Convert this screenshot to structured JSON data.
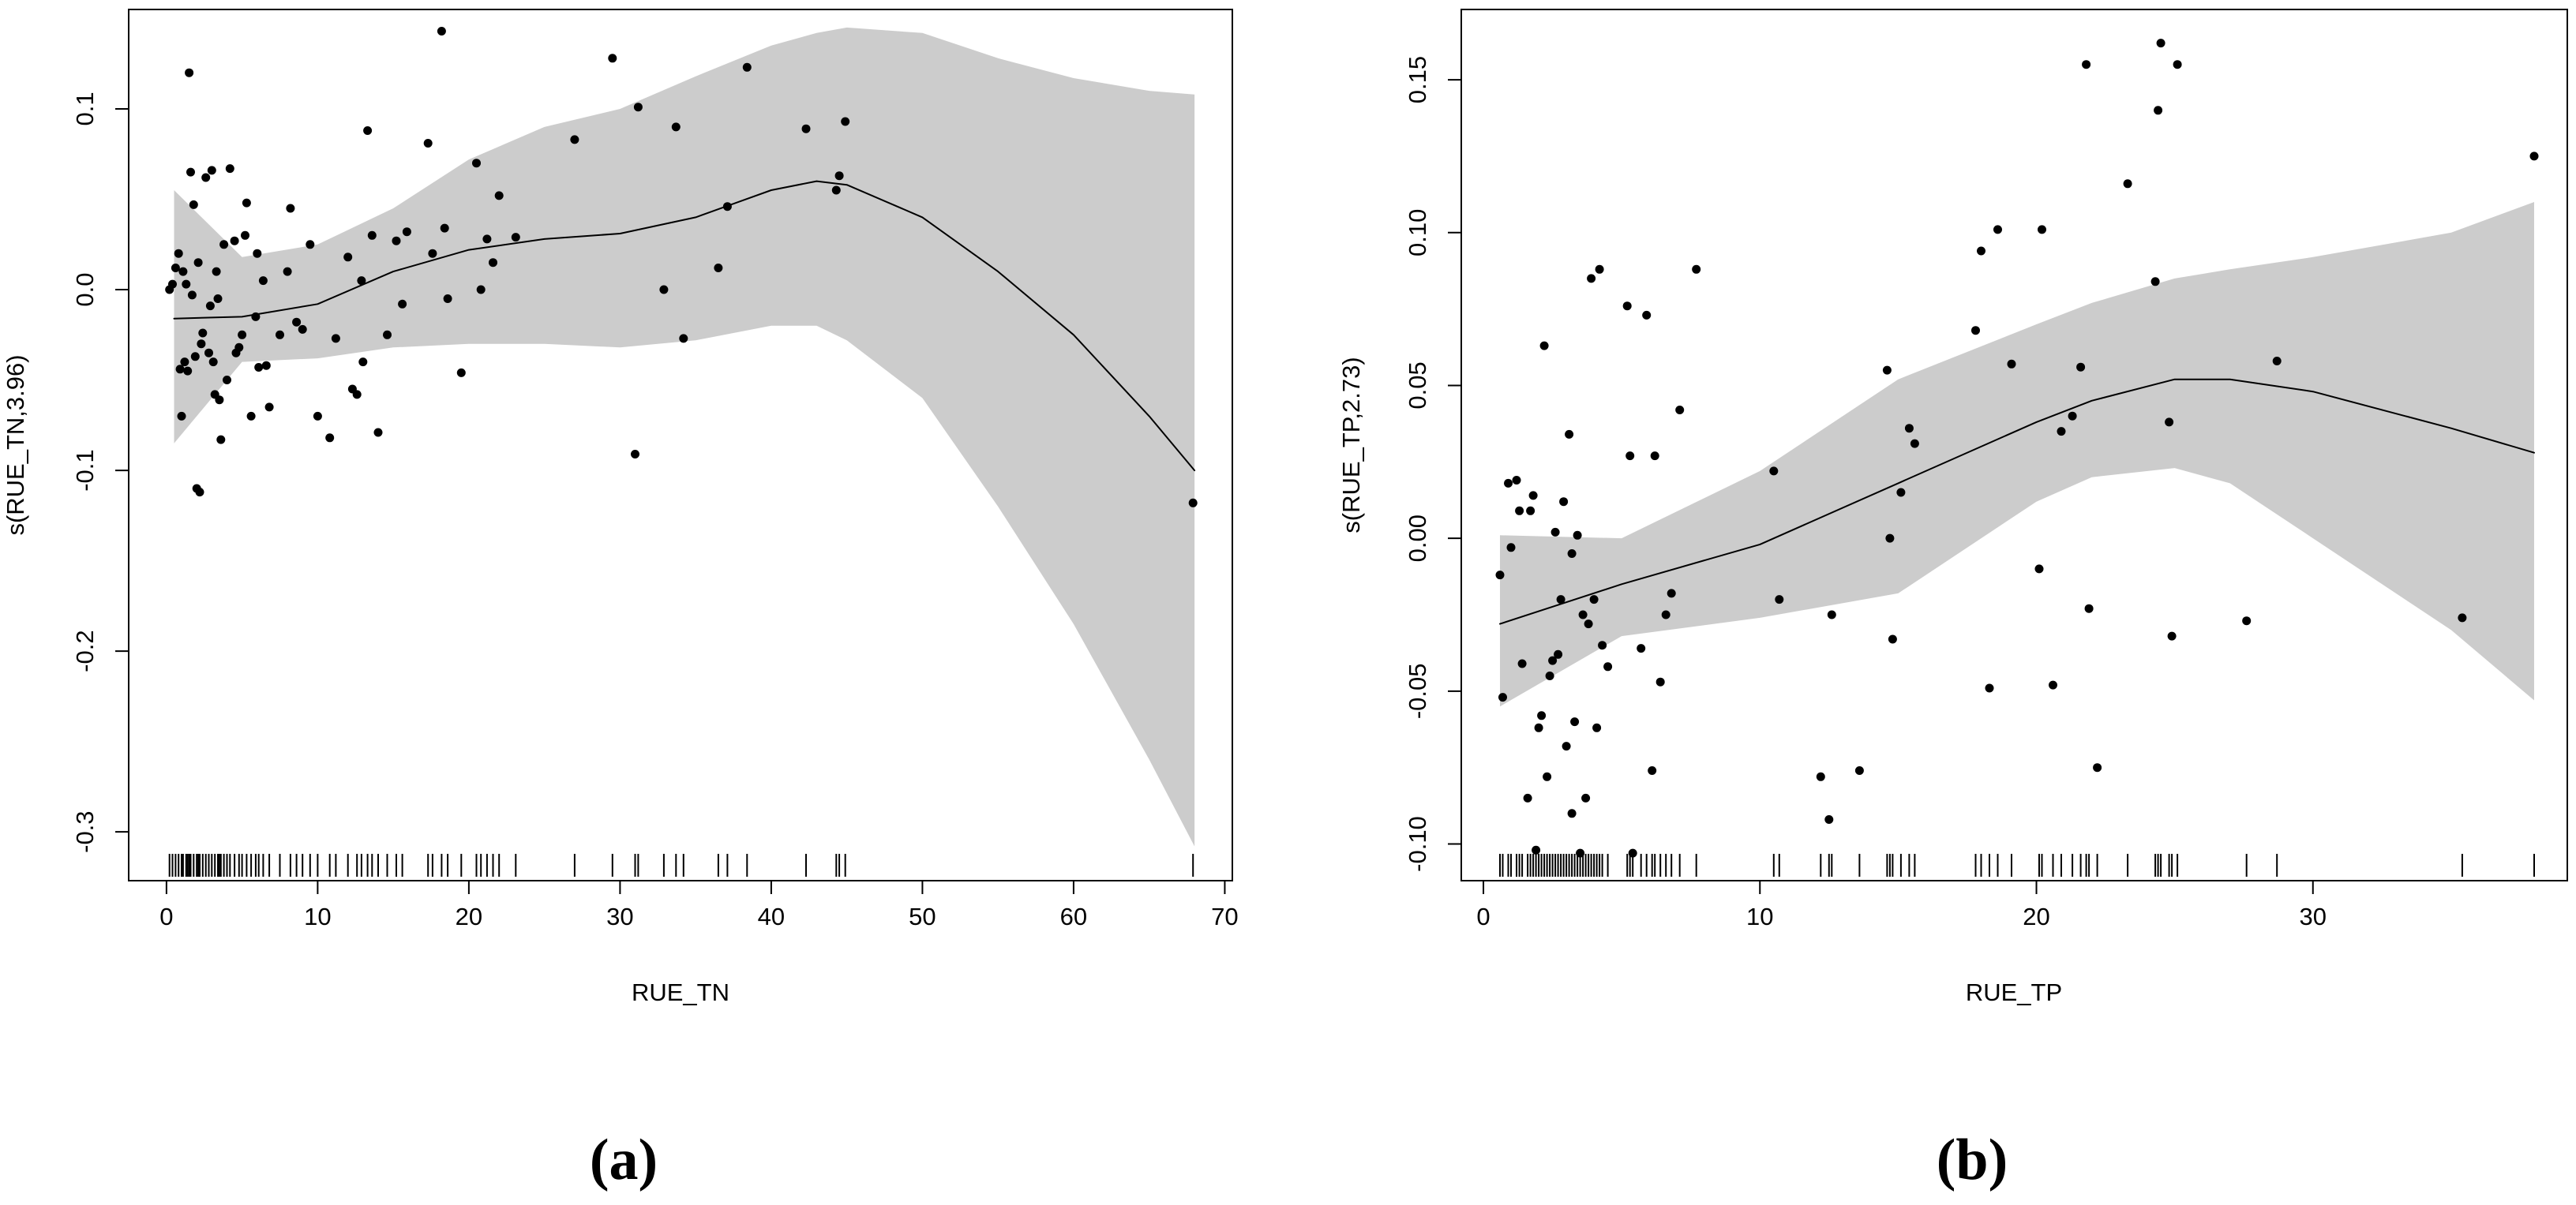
{
  "colors": {
    "band": "#cccccc",
    "line": "#000000",
    "points": "#000000",
    "axis": "#000000",
    "background": "#ffffff"
  },
  "chart_data": [
    {
      "type": "scatter",
      "panel_label": "(a)",
      "title": "",
      "xlabel": "RUE_TN",
      "ylabel": "s(RUE_TN,3.96)",
      "xlim": [
        -2.5,
        70.5
      ],
      "ylim": [
        -0.327,
        0.155
      ],
      "xticks": [
        0,
        10,
        20,
        30,
        40,
        50,
        60,
        70
      ],
      "yticks": [
        -0.3,
        -0.2,
        -0.1,
        0.0,
        0.1
      ],
      "xtick_labels": [
        "0",
        "10",
        "20",
        "30",
        "40",
        "50",
        "60",
        "70"
      ],
      "ytick_labels": [
        "-0.3",
        "-0.2",
        "-0.1",
        "0.0",
        "0.1"
      ],
      "fit": {
        "x": [
          0.5,
          5,
          10,
          15,
          20,
          25,
          30,
          35,
          40,
          43,
          45,
          50,
          55,
          60,
          65,
          68
        ],
        "y": [
          -0.016,
          -0.015,
          -0.008,
          0.01,
          0.022,
          0.028,
          0.031,
          0.04,
          0.055,
          0.06,
          0.058,
          0.04,
          0.01,
          -0.025,
          -0.07,
          -0.1
        ],
        "lower": [
          -0.085,
          -0.04,
          -0.038,
          -0.032,
          -0.03,
          -0.03,
          -0.032,
          -0.028,
          -0.02,
          -0.02,
          -0.028,
          -0.06,
          -0.12,
          -0.185,
          -0.26,
          -0.308
        ],
        "upper": [
          0.055,
          0.018,
          0.025,
          0.045,
          0.072,
          0.09,
          0.1,
          0.118,
          0.135,
          0.142,
          0.145,
          0.142,
          0.128,
          0.117,
          0.11,
          0.108
        ]
      },
      "points": {
        "x": [
          0.2,
          0.4,
          0.6,
          0.8,
          1.0,
          1.1,
          1.3,
          1.4,
          1.5,
          1.6,
          1.8,
          2.0,
          2.1,
          2.2,
          2.4,
          2.6,
          2.8,
          3.0,
          3.2,
          3.4,
          3.5,
          3.6,
          3.8,
          4.0,
          4.2,
          4.5,
          4.8,
          5.0,
          5.3,
          5.6,
          5.9,
          6.1,
          6.4,
          6.8,
          7.5,
          8.2,
          8.6,
          9.0,
          9.5,
          10.0,
          10.8,
          11.2,
          12.0,
          12.6,
          12.9,
          13.3,
          13.6,
          14.0,
          14.6,
          15.2,
          15.6,
          17.3,
          17.6,
          18.2,
          18.6,
          19.5,
          20.5,
          20.8,
          21.2,
          21.6,
          22.0,
          23.1,
          27.0,
          29.5,
          31.0,
          31.2,
          32.9,
          33.7,
          34.2,
          36.5,
          37.1,
          38.4,
          42.3,
          44.3,
          44.5,
          44.9,
          67.9,
          0.9,
          1.2,
          1.9,
          2.3,
          3.1,
          3.3,
          4.6,
          5.2,
          6.0,
          6.6,
          8.0,
          12.3,
          13.0,
          15.9,
          18.4,
          1.7,
          2.9
        ],
        "y": [
          0.0,
          0.003,
          0.012,
          0.02,
          -0.07,
          0.01,
          0.003,
          -0.045,
          0.12,
          0.065,
          0.047,
          -0.11,
          0.015,
          -0.112,
          -0.024,
          0.062,
          -0.035,
          0.066,
          -0.058,
          -0.005,
          -0.061,
          -0.083,
          0.025,
          -0.05,
          0.067,
          0.027,
          -0.032,
          -0.025,
          0.048,
          -0.07,
          -0.015,
          -0.043,
          0.005,
          -0.065,
          -0.025,
          0.045,
          -0.018,
          -0.022,
          0.025,
          -0.07,
          -0.082,
          -0.027,
          0.018,
          -0.058,
          0.005,
          0.088,
          0.03,
          -0.079,
          -0.025,
          0.027,
          -0.008,
          0.081,
          0.02,
          0.143,
          -0.005,
          -0.046,
          0.07,
          0.0,
          0.028,
          0.015,
          0.052,
          0.029,
          0.083,
          0.128,
          -0.091,
          0.101,
          0.0,
          0.09,
          -0.027,
          0.012,
          0.046,
          0.123,
          0.089,
          0.055,
          0.063,
          0.093,
          -0.118,
          -0.044,
          -0.04,
          -0.037,
          -0.03,
          -0.04,
          0.01,
          -0.035,
          0.03,
          0.02,
          -0.042,
          0.01,
          -0.055,
          -0.04,
          0.032,
          0.034,
          -0.003,
          -0.009
        ],
        "rug_x": [
          0.2,
          0.4,
          0.6,
          0.8,
          1.0,
          1.1,
          1.3,
          1.4,
          1.5,
          1.6,
          1.8,
          2.0,
          2.1,
          2.2,
          2.4,
          2.6,
          2.8,
          3.0,
          3.2,
          3.4,
          3.5,
          3.6,
          3.8,
          4.0,
          4.2,
          4.5,
          4.8,
          5.0,
          5.3,
          5.6,
          5.9,
          6.1,
          6.4,
          6.8,
          7.5,
          8.2,
          8.6,
          9.0,
          9.5,
          10.0,
          10.8,
          11.2,
          12.0,
          12.6,
          12.9,
          13.3,
          13.6,
          14.0,
          14.6,
          15.2,
          15.6,
          17.3,
          17.6,
          18.2,
          18.6,
          19.5,
          20.5,
          20.8,
          21.2,
          21.6,
          22.0,
          23.1,
          27.0,
          29.5,
          31.0,
          31.2,
          32.9,
          33.7,
          34.2,
          36.5,
          37.1,
          38.4,
          42.3,
          44.3,
          44.5,
          44.9,
          67.9
        ]
      }
    },
    {
      "type": "scatter",
      "panel_label": "(b)",
      "title": "",
      "xlabel": "RUE_TP",
      "ylabel": "s(RUE_TP,2.73)",
      "xlim": [
        -0.8,
        39.2
      ],
      "ylim": [
        -0.112,
        0.173
      ],
      "xticks": [
        0,
        10,
        20,
        30
      ],
      "yticks": [
        -0.1,
        -0.05,
        0.0,
        0.05,
        0.1,
        0.15
      ],
      "xtick_labels": [
        "0",
        "10",
        "20",
        "30"
      ],
      "ytick_labels": [
        "-0.10",
        "-0.05",
        "0.00",
        "0.05",
        "0.10",
        "0.15"
      ],
      "fit": {
        "x": [
          0.6,
          5,
          10,
          15,
          20,
          22,
          25,
          27,
          30,
          35,
          38
        ],
        "y": [
          -0.028,
          -0.015,
          -0.002,
          0.018,
          0.038,
          0.045,
          0.052,
          0.052,
          0.048,
          0.036,
          0.028
        ],
        "lower": [
          -0.055,
          -0.032,
          -0.026,
          -0.018,
          0.012,
          0.02,
          0.023,
          0.018,
          0.0,
          -0.03,
          -0.053
        ],
        "upper": [
          0.001,
          0.0,
          0.022,
          0.052,
          0.07,
          0.077,
          0.085,
          0.088,
          0.092,
          0.1,
          0.11
        ]
      },
      "points": {
        "x": [
          0.6,
          0.7,
          0.9,
          1.0,
          1.2,
          1.3,
          1.4,
          1.6,
          1.7,
          1.8,
          1.9,
          2.0,
          2.1,
          2.2,
          2.3,
          2.4,
          2.5,
          2.6,
          2.7,
          2.8,
          2.9,
          3.0,
          3.1,
          3.2,
          3.3,
          3.4,
          3.5,
          3.6,
          3.7,
          3.8,
          3.9,
          4.0,
          4.1,
          4.2,
          4.3,
          4.5,
          5.2,
          5.3,
          5.4,
          5.7,
          5.9,
          6.1,
          6.2,
          6.4,
          6.6,
          6.8,
          7.1,
          7.7,
          10.5,
          10.7,
          12.2,
          12.5,
          12.6,
          13.6,
          14.6,
          14.7,
          14.8,
          15.1,
          15.4,
          15.6,
          17.8,
          18.0,
          18.3,
          18.6,
          19.1,
          20.1,
          20.2,
          20.6,
          20.9,
          21.3,
          21.6,
          21.8,
          21.9,
          22.2,
          23.3,
          24.3,
          24.4,
          24.5,
          24.8,
          24.9,
          25.1,
          27.6,
          28.7,
          35.4,
          38.0,
          3.2
        ],
        "y": [
          -0.012,
          -0.052,
          0.018,
          -0.003,
          0.019,
          0.009,
          -0.041,
          -0.085,
          0.009,
          0.014,
          -0.102,
          -0.062,
          -0.058,
          0.063,
          -0.078,
          -0.045,
          -0.04,
          0.002,
          -0.038,
          -0.02,
          0.012,
          -0.068,
          0.034,
          -0.09,
          -0.06,
          0.001,
          -0.103,
          -0.025,
          -0.085,
          -0.028,
          0.085,
          -0.02,
          -0.062,
          0.088,
          -0.035,
          -0.042,
          0.076,
          0.027,
          -0.103,
          -0.036,
          0.073,
          -0.076,
          0.027,
          -0.047,
          -0.025,
          -0.018,
          0.042,
          0.088,
          0.022,
          -0.02,
          -0.078,
          -0.092,
          -0.025,
          -0.076,
          0.055,
          0.0,
          -0.033,
          0.015,
          0.036,
          0.031,
          0.068,
          0.094,
          -0.049,
          0.101,
          0.057,
          -0.01,
          0.101,
          -0.048,
          0.035,
          0.04,
          0.056,
          0.155,
          -0.023,
          -0.075,
          0.116,
          0.084,
          0.14,
          0.162,
          0.038,
          -0.032,
          0.155,
          -0.027,
          0.058,
          -0.026,
          0.125,
          -0.005
        ],
        "rug_x": [
          0.6,
          0.7,
          0.9,
          1.0,
          1.2,
          1.3,
          1.4,
          1.6,
          1.7,
          1.8,
          1.9,
          2.0,
          2.1,
          2.2,
          2.3,
          2.4,
          2.5,
          2.6,
          2.7,
          2.8,
          2.9,
          3.0,
          3.1,
          3.2,
          3.3,
          3.4,
          3.5,
          3.6,
          3.7,
          3.8,
          3.9,
          4.0,
          4.1,
          4.2,
          4.3,
          4.5,
          5.2,
          5.3,
          5.4,
          5.7,
          5.9,
          6.1,
          6.2,
          6.4,
          6.6,
          6.8,
          7.1,
          7.7,
          10.5,
          10.7,
          12.2,
          12.5,
          12.6,
          13.6,
          14.6,
          14.7,
          14.8,
          15.1,
          15.4,
          15.6,
          17.8,
          18.0,
          18.3,
          18.6,
          19.1,
          20.1,
          20.2,
          20.6,
          20.9,
          21.3,
          21.6,
          21.8,
          21.9,
          22.2,
          23.3,
          24.3,
          24.4,
          24.5,
          24.8,
          24.9,
          25.1,
          27.6,
          28.7,
          35.4,
          38.0
        ]
      }
    }
  ]
}
